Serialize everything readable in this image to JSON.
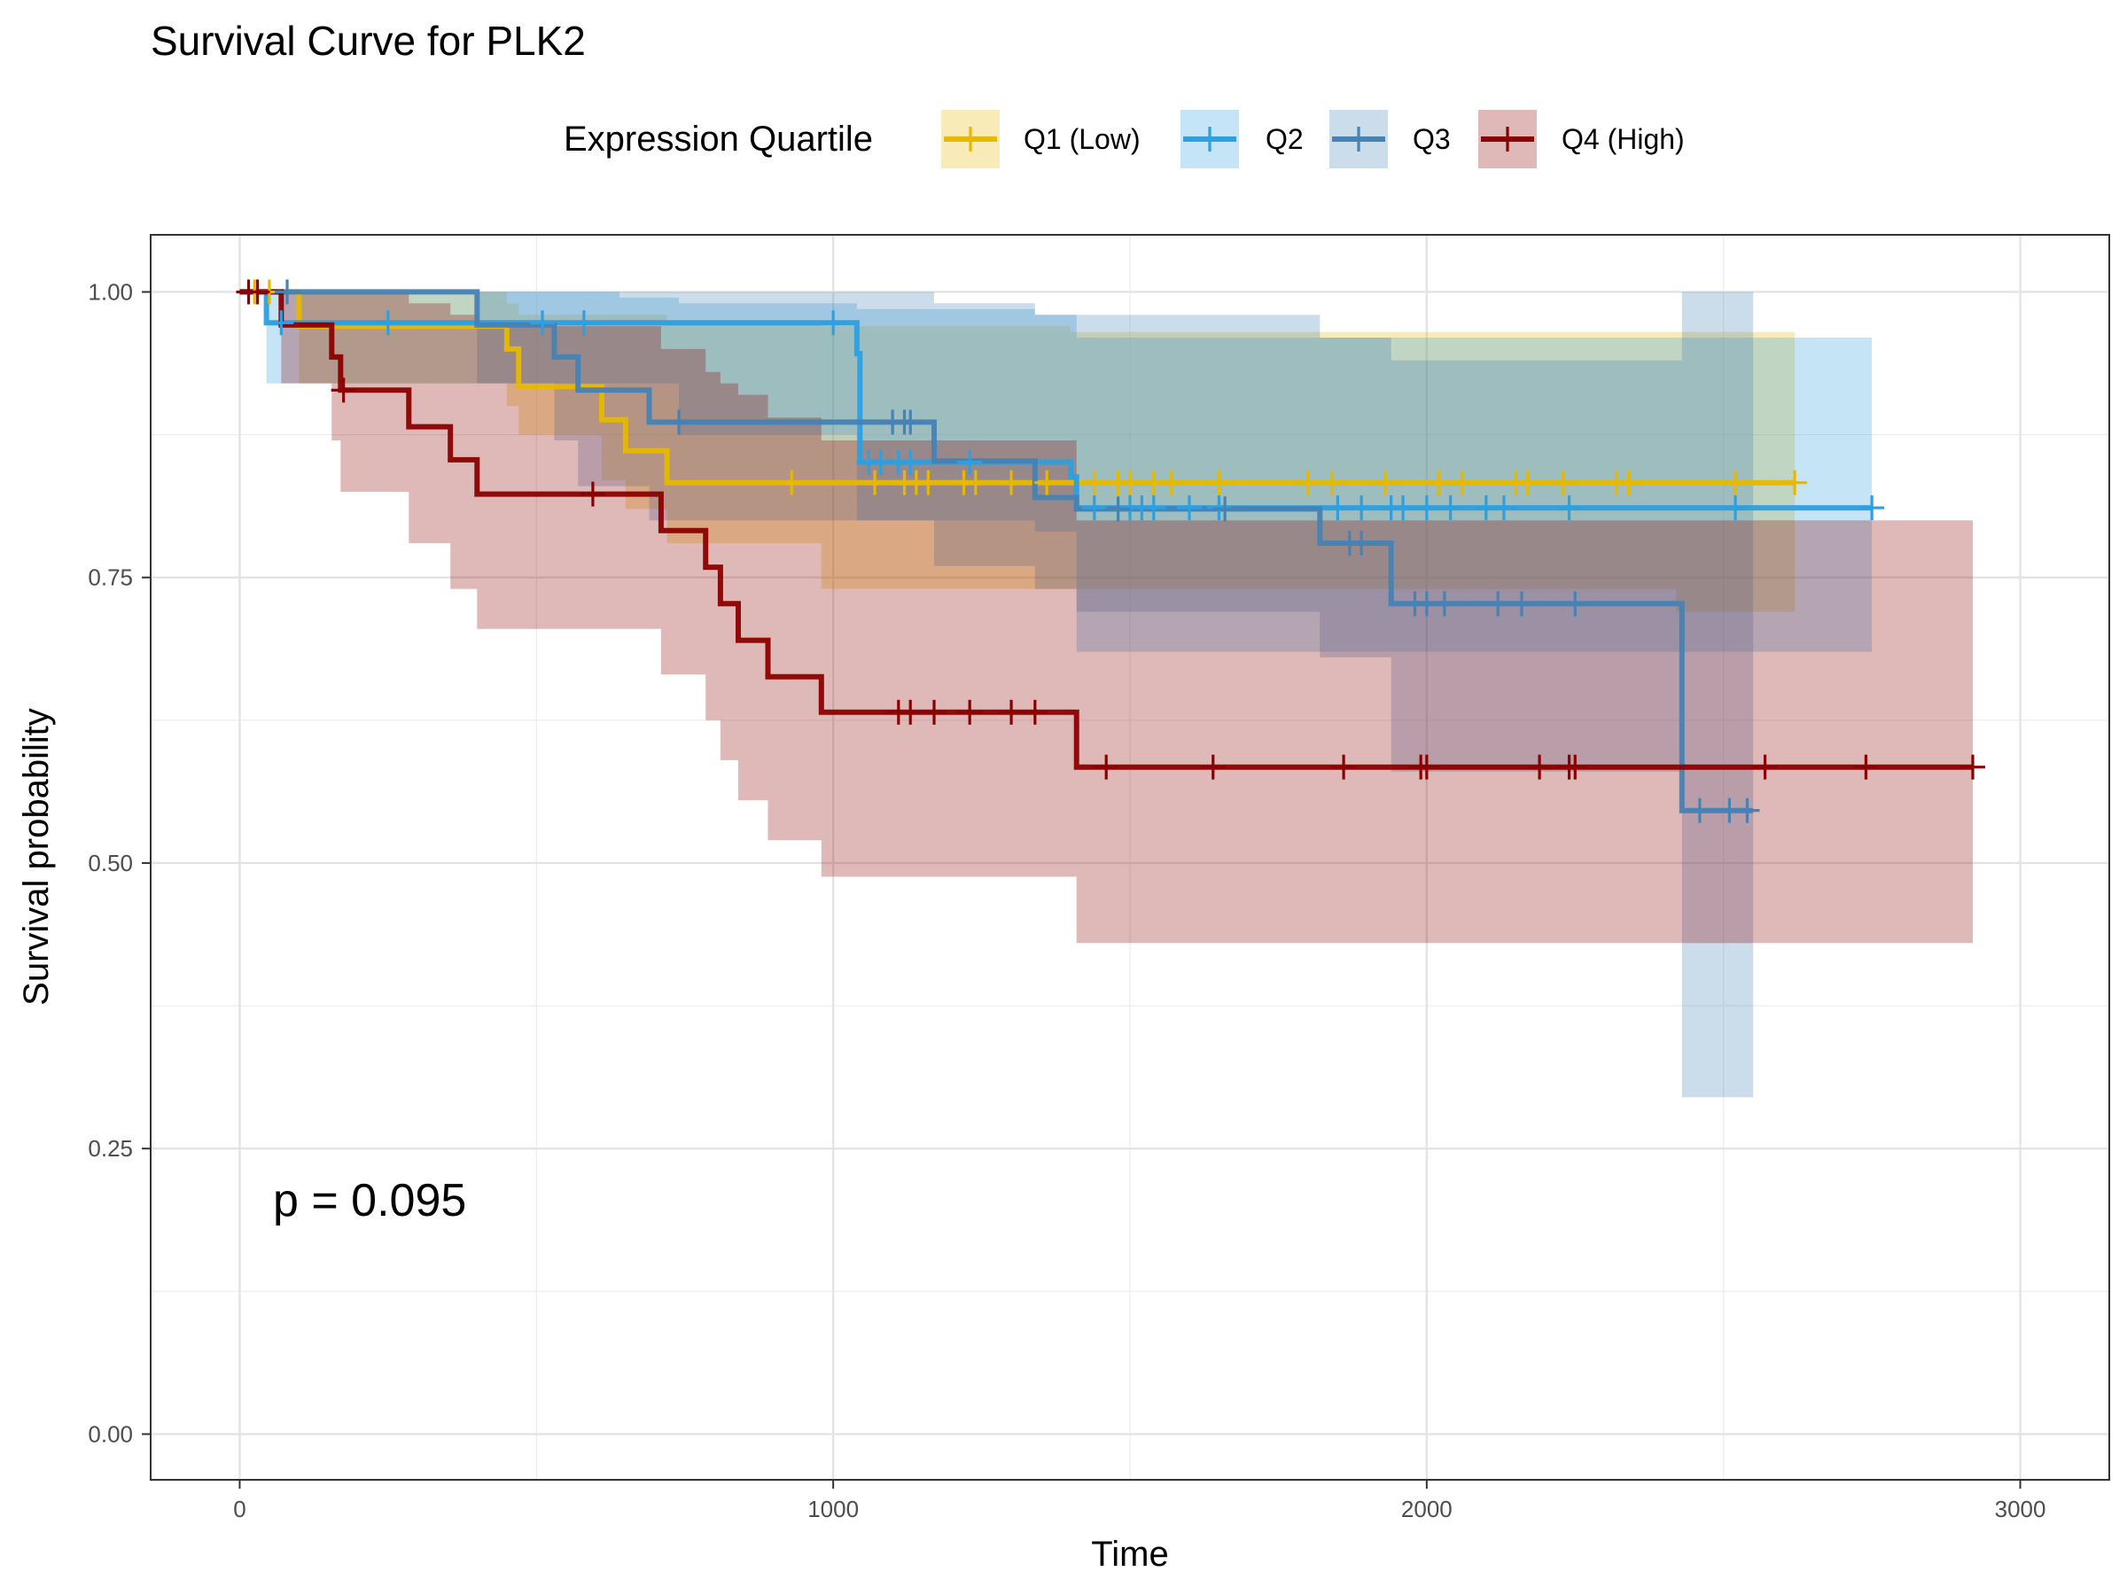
{
  "chart_data": {
    "type": "line",
    "title": "Survival Curve for PLK2",
    "xlabel": "Time",
    "ylabel": "Survival probability",
    "xlim": [
      -150,
      3150
    ],
    "ylim": [
      -0.04,
      1.05
    ],
    "x_ticks": [
      0,
      1000,
      2000,
      3000
    ],
    "x_tick_labels": [
      "0",
      "1000",
      "2000",
      "3000"
    ],
    "y_ticks": [
      0,
      0.25,
      0.5,
      0.75,
      1.0
    ],
    "y_tick_labels": [
      "0.00",
      "0.25",
      "0.50",
      "0.75",
      "1.00"
    ],
    "grid": true,
    "legend": {
      "title": "Expression Quartile",
      "position": "top",
      "entries": [
        "Q1 (Low)",
        "Q2",
        "Q3",
        "Q4 (High)"
      ]
    },
    "annotation": "p = 0.095",
    "series": [
      {
        "name": "Q1 (Low)",
        "color": "#E7B800",
        "steps": [
          [
            0,
            1.0
          ],
          [
            100,
            0.97
          ],
          [
            450,
            0.95
          ],
          [
            470,
            0.917
          ],
          [
            610,
            0.888
          ],
          [
            650,
            0.861
          ],
          [
            720,
            0.833
          ],
          [
            2620,
            0.833
          ]
        ],
        "band": [
          [
            0,
            1.0,
            1.0
          ],
          [
            100,
            1.0,
            0.92
          ],
          [
            450,
            0.99,
            0.9
          ],
          [
            470,
            0.98,
            0.875
          ],
          [
            610,
            0.98,
            0.835
          ],
          [
            650,
            0.98,
            0.81
          ],
          [
            720,
            0.975,
            0.78
          ],
          [
            980,
            0.97,
            0.74
          ],
          [
            1400,
            0.965,
            0.74
          ],
          [
            2420,
            0.965,
            0.72
          ],
          [
            2620,
            0.965,
            0.72
          ]
        ],
        "censor": [
          25,
          50,
          930,
          1070,
          1120,
          1140,
          1160,
          1220,
          1240,
          1300,
          1360,
          1440,
          1480,
          1500,
          1540,
          1570,
          1650,
          1800,
          1840,
          1930,
          2020,
          2060,
          2150,
          2170,
          2230,
          2320,
          2340,
          2520,
          2620
        ]
      },
      {
        "name": "Q2",
        "color": "#2E9FDF",
        "steps": [
          [
            0,
            1.0
          ],
          [
            45,
            0.973
          ],
          [
            1040,
            0.946
          ],
          [
            1045,
            0.878
          ],
          [
            1045,
            0.851
          ],
          [
            1400,
            0.838
          ],
          [
            1410,
            0.811
          ],
          [
            2750,
            0.811
          ]
        ],
        "band": [
          [
            0,
            1.0,
            1.0
          ],
          [
            45,
            1.0,
            0.92
          ],
          [
            170,
            1.0,
            0.92
          ],
          [
            640,
            0.995,
            0.92
          ],
          [
            740,
            0.99,
            0.875
          ],
          [
            1040,
            0.985,
            0.8
          ],
          [
            1340,
            0.98,
            0.79
          ],
          [
            1410,
            0.96,
            0.685
          ],
          [
            2750,
            0.96,
            0.685
          ]
        ],
        "censor": [
          70,
          250,
          510,
          580,
          1000,
          1060,
          1080,
          1110,
          1130,
          1230,
          1440,
          1500,
          1520,
          1540,
          1600,
          1650,
          1850,
          1890,
          1940,
          1960,
          2000,
          2040,
          2100,
          2130,
          2240,
          2520,
          2750
        ]
      },
      {
        "name": "Q3",
        "color": "#4682B4",
        "steps": [
          [
            0,
            1.0
          ],
          [
            400,
            0.971
          ],
          [
            530,
            0.943
          ],
          [
            570,
            0.914
          ],
          [
            690,
            0.886
          ],
          [
            1170,
            0.852
          ],
          [
            1340,
            0.82
          ],
          [
            1410,
            0.81
          ],
          [
            1820,
            0.78
          ],
          [
            1940,
            0.727
          ],
          [
            2430,
            0.546
          ],
          [
            2550,
            0.546
          ]
        ],
        "band": [
          [
            0,
            1.0,
            1.0
          ],
          [
            400,
            1.0,
            0.92
          ],
          [
            530,
            1.0,
            0.87
          ],
          [
            570,
            1.0,
            0.83
          ],
          [
            690,
            1.0,
            0.8
          ],
          [
            1170,
            0.99,
            0.76
          ],
          [
            1340,
            0.98,
            0.74
          ],
          [
            1410,
            0.98,
            0.72
          ],
          [
            1820,
            0.96,
            0.68
          ],
          [
            1940,
            0.94,
            0.58
          ],
          [
            2430,
            1.0,
            0.295
          ],
          [
            2550,
            1.0,
            0.295
          ]
        ],
        "censor": [
          80,
          740,
          1100,
          1120,
          1130,
          1480,
          1660,
          1870,
          1890,
          1980,
          2000,
          2030,
          2120,
          2160,
          2250,
          2460,
          2510,
          2540
        ]
      },
      {
        "name": "Q4 (High)",
        "color": "#8B0000",
        "steps": [
          [
            0,
            1.0
          ],
          [
            70,
            0.971
          ],
          [
            155,
            0.943
          ],
          [
            170,
            0.914
          ],
          [
            285,
            0.882
          ],
          [
            355,
            0.853
          ],
          [
            400,
            0.823
          ],
          [
            710,
            0.791
          ],
          [
            785,
            0.759
          ],
          [
            810,
            0.727
          ],
          [
            840,
            0.695
          ],
          [
            890,
            0.663
          ],
          [
            980,
            0.632
          ],
          [
            1410,
            0.584
          ],
          [
            2920,
            0.584
          ]
        ],
        "band": [
          [
            0,
            1.0,
            1.0
          ],
          [
            70,
            1.0,
            0.92
          ],
          [
            155,
            1.0,
            0.87
          ],
          [
            170,
            1.0,
            0.825
          ],
          [
            285,
            0.99,
            0.78
          ],
          [
            355,
            0.98,
            0.74
          ],
          [
            400,
            0.97,
            0.705
          ],
          [
            710,
            0.95,
            0.665
          ],
          [
            785,
            0.93,
            0.625
          ],
          [
            810,
            0.92,
            0.59
          ],
          [
            840,
            0.91,
            0.555
          ],
          [
            890,
            0.89,
            0.52
          ],
          [
            980,
            0.87,
            0.488
          ],
          [
            1410,
            0.8,
            0.43
          ],
          [
            2920,
            0.793,
            0.43
          ]
        ],
        "censor": [
          15,
          30,
          175,
          595,
          1110,
          1130,
          1170,
          1230,
          1300,
          1340,
          1460,
          1640,
          1860,
          1990,
          2000,
          2190,
          2240,
          2250,
          2570,
          2740,
          2920
        ]
      }
    ]
  }
}
